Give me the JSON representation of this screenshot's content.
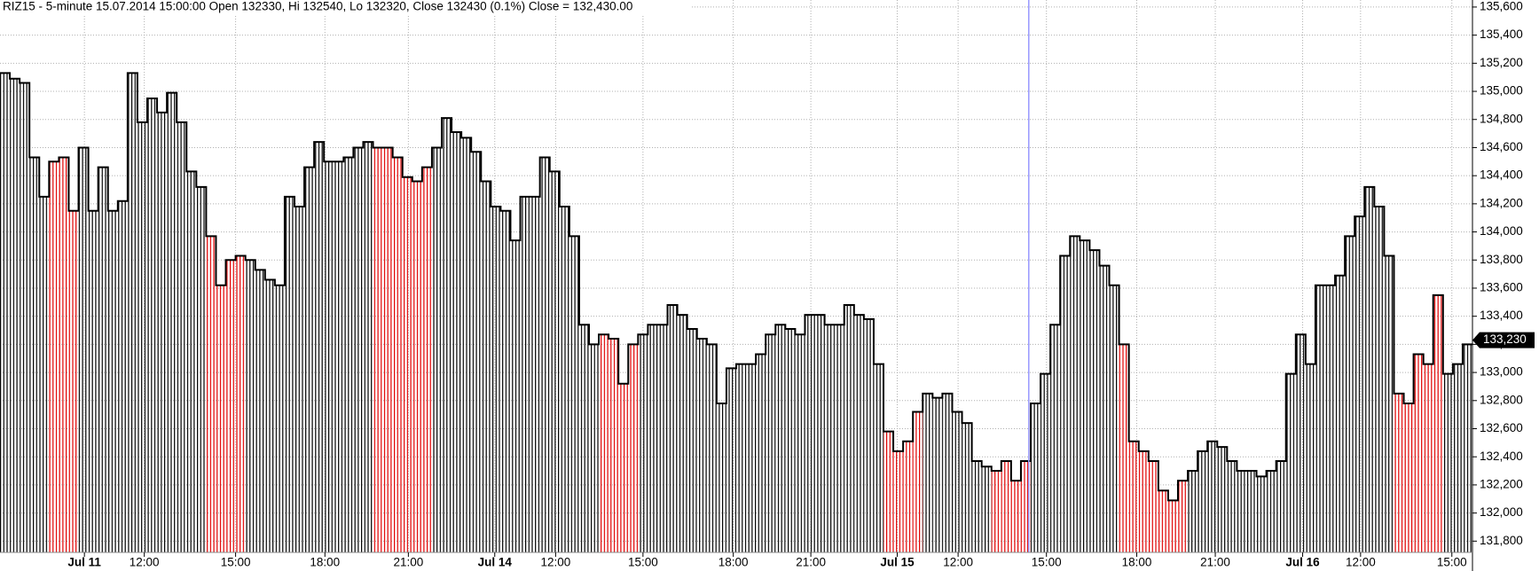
{
  "chart_data": {
    "type": "bar",
    "title": "RIZ15 - 5-minute 15.07.2014 15:00:00 Open 132330, Hi 132540, Lo 132320, Close 132430 (0.1%) Close = 132,430.00",
    "values": [
      135130,
      135090,
      135060,
      134530,
      134250,
      134500,
      134530,
      134150,
      134600,
      134150,
      134460,
      134150,
      134220,
      135130,
      134780,
      134950,
      134850,
      134990,
      134780,
      134430,
      134320,
      133970,
      133620,
      133800,
      133830,
      133800,
      133730,
      133660,
      133620,
      134250,
      134180,
      134460,
      134640,
      134500,
      134500,
      134530,
      134600,
      134640,
      134600,
      134600,
      134530,
      134390,
      134360,
      134460,
      134600,
      134810,
      134710,
      134670,
      134570,
      134360,
      134180,
      134150,
      133940,
      134250,
      134250,
      134530,
      134430,
      134180,
      133970,
      133340,
      133200,
      133270,
      133240,
      132920,
      133200,
      133270,
      133340,
      133340,
      133480,
      133410,
      133310,
      133240,
      133200,
      132780,
      133030,
      133060,
      133060,
      133130,
      133270,
      133340,
      133310,
      133270,
      133410,
      133410,
      133340,
      133340,
      133480,
      133410,
      133380,
      133060,
      132580,
      132440,
      132510,
      132720,
      132850,
      132820,
      132850,
      132720,
      132640,
      132370,
      132330,
      132300,
      132370,
      132230,
      132370,
      132780,
      132990,
      133340,
      133830,
      133970,
      133940,
      133870,
      133760,
      133620,
      133200,
      132510,
      132440,
      132370,
      132160,
      132090,
      132230,
      132300,
      132440,
      132510,
      132470,
      132370,
      132300,
      132300,
      132260,
      132300,
      132370,
      132990,
      133270,
      133060,
      133620,
      133620,
      133690,
      133970,
      134110,
      134320,
      134180,
      133830,
      132850,
      132780,
      133130,
      133060,
      133550,
      132990,
      133060,
      133200
    ],
    "colors": [
      "#000000",
      "#000000",
      "#000000",
      "#000000",
      "#000000",
      "#e00000",
      "#e00000",
      "#e00000",
      "#000000",
      "#000000",
      "#000000",
      "#000000",
      "#000000",
      "#000000",
      "#000000",
      "#000000",
      "#000000",
      "#000000",
      "#000000",
      "#000000",
      "#000000",
      "#e00000",
      "#e00000",
      "#e00000",
      "#e00000",
      "#000000",
      "#000000",
      "#000000",
      "#000000",
      "#000000",
      "#000000",
      "#000000",
      "#000000",
      "#000000",
      "#000000",
      "#000000",
      "#000000",
      "#000000",
      "#e00000",
      "#e00000",
      "#e00000",
      "#e00000",
      "#e00000",
      "#e00000",
      "#000000",
      "#000000",
      "#000000",
      "#000000",
      "#000000",
      "#000000",
      "#000000",
      "#000000",
      "#000000",
      "#000000",
      "#000000",
      "#000000",
      "#000000",
      "#000000",
      "#000000",
      "#000000",
      "#000000",
      "#e00000",
      "#e00000",
      "#e00000",
      "#e00000",
      "#000000",
      "#000000",
      "#000000",
      "#000000",
      "#000000",
      "#000000",
      "#000000",
      "#000000",
      "#000000",
      "#000000",
      "#000000",
      "#000000",
      "#000000",
      "#000000",
      "#000000",
      "#000000",
      "#000000",
      "#000000",
      "#000000",
      "#000000",
      "#000000",
      "#000000",
      "#000000",
      "#000000",
      "#000000",
      "#e00000",
      "#e00000",
      "#e00000",
      "#e00000",
      "#000000",
      "#000000",
      "#000000",
      "#000000",
      "#000000",
      "#000000",
      "#000000",
      "#e00000",
      "#e00000",
      "#e00000",
      "#e00000",
      "#000000",
      "#000000",
      "#000000",
      "#000000",
      "#000000",
      "#000000",
      "#000000",
      "#000000",
      "#000000",
      "#e00000",
      "#e00000",
      "#e00000",
      "#e00000",
      "#e00000",
      "#e00000",
      "#e00000",
      "#000000",
      "#000000",
      "#000000",
      "#000000",
      "#000000",
      "#000000",
      "#000000",
      "#000000",
      "#000000",
      "#000000",
      "#000000",
      "#000000",
      "#000000",
      "#000000",
      "#000000",
      "#000000",
      "#000000",
      "#000000",
      "#000000",
      "#000000",
      "#000000",
      "#e00000",
      "#e00000",
      "#e00000",
      "#e00000",
      "#e00000",
      "#000000",
      "#000000",
      "#000000"
    ],
    "xlim": [
      0,
      150
    ],
    "xticks": [
      {
        "value": 8.6,
        "label": "Jul 11",
        "major": true
      },
      {
        "value": 14.7,
        "label": "12:00"
      },
      {
        "value": 24,
        "label": "15:00"
      },
      {
        "value": 33.1,
        "label": "18:00"
      },
      {
        "value": 41.6,
        "label": "21:00"
      },
      {
        "value": 50.4,
        "label": "Jul 14",
        "major": true
      },
      {
        "value": 56.6,
        "label": "12:00"
      },
      {
        "value": 65.5,
        "label": "15:00"
      },
      {
        "value": 74.7,
        "label": "18:00"
      },
      {
        "value": 82.6,
        "label": "21:00"
      },
      {
        "value": 91.4,
        "label": "Jul 15",
        "major": true
      },
      {
        "value": 97.6,
        "label": "12:00"
      },
      {
        "value": 106.6,
        "label": "15:00"
      },
      {
        "value": 115.8,
        "label": "18:00"
      },
      {
        "value": 123.8,
        "label": "21:00"
      },
      {
        "value": 132.7,
        "label": "Jul 16",
        "major": true
      },
      {
        "value": 138.6,
        "label": "12:00"
      },
      {
        "value": 147.9,
        "label": "15:00"
      }
    ],
    "ylim": [
      131720,
      135650
    ],
    "yticks": [
      {
        "value": 131800,
        "label": "131,800"
      },
      {
        "value": 132000,
        "label": "132,000"
      },
      {
        "value": 132200,
        "label": "132,200"
      },
      {
        "value": 132400,
        "label": "132,400"
      },
      {
        "value": 132600,
        "label": "132,600"
      },
      {
        "value": 132800,
        "label": "132,800"
      },
      {
        "value": 133000,
        "label": "133,000"
      },
      {
        "value": 133200,
        "label": "133,200"
      },
      {
        "value": 133400,
        "label": "133,400"
      },
      {
        "value": 133600,
        "label": "133,600"
      },
      {
        "value": 133800,
        "label": "133,800"
      },
      {
        "value": 134000,
        "label": "134,000"
      },
      {
        "value": 134200,
        "label": "134,200"
      },
      {
        "value": 134400,
        "label": "134,400"
      },
      {
        "value": 134600,
        "label": "134,600"
      },
      {
        "value": 134800,
        "label": "134,800"
      },
      {
        "value": 135000,
        "label": "135,000"
      },
      {
        "value": 135200,
        "label": "135,200"
      },
      {
        "value": 135400,
        "label": "135,400"
      },
      {
        "value": 135600,
        "label": "135,600"
      }
    ],
    "grid": true,
    "cursor_x": 104.8,
    "cursor_color": "#9999ff",
    "last_price": {
      "value": 133230,
      "label": "133,230"
    }
  }
}
